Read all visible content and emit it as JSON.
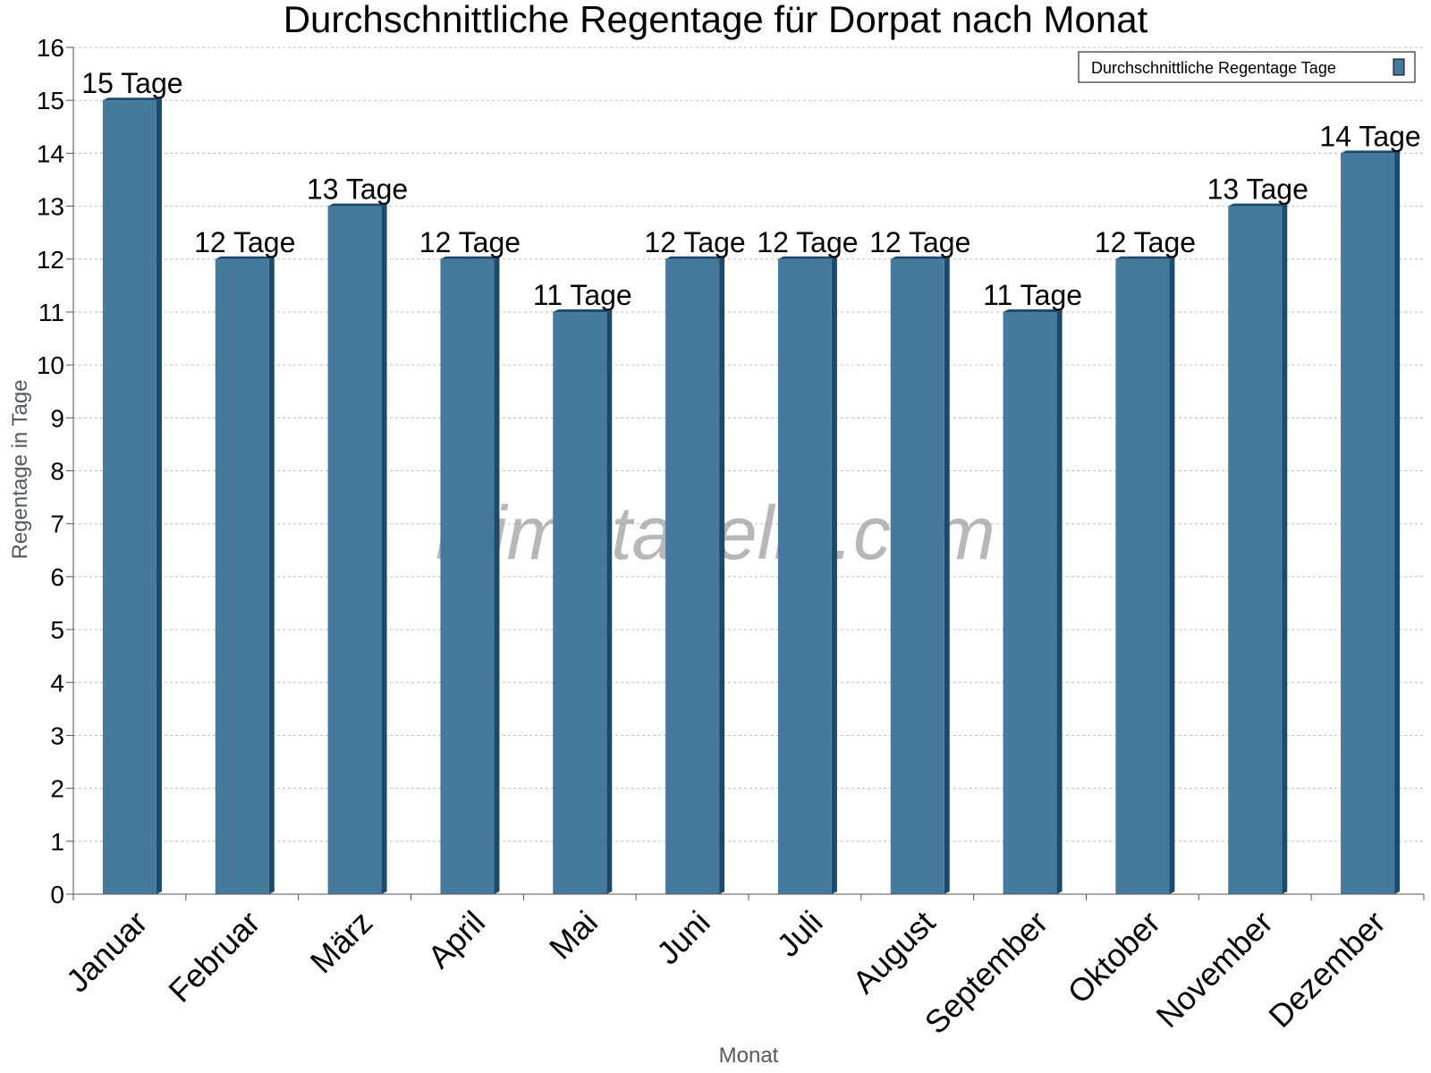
{
  "chart_data": {
    "type": "bar",
    "title": "Durchschnittliche Regentage für Dorpat nach Monat",
    "xlabel": "Monat",
    "ylabel": "Regentage in Tage",
    "categories": [
      "Januar",
      "Februar",
      "März",
      "April",
      "Mai",
      "Juni",
      "Juli",
      "August",
      "September",
      "Oktober",
      "November",
      "Dezember"
    ],
    "series": [
      {
        "name": "Durchschnittliche Regentage Tage",
        "values": [
          15,
          12,
          13,
          12,
          11,
          12,
          12,
          12,
          11,
          12,
          13,
          14
        ],
        "data_labels": [
          "15 Tage",
          "12 Tage",
          "13 Tage",
          "12 Tage",
          "11 Tage",
          "12 Tage",
          "12 Tage",
          "12 Tage",
          "11 Tage",
          "12 Tage",
          "13 Tage",
          "14 Tage"
        ],
        "color": "#467a9c",
        "shade_color": "#1c4a6c"
      }
    ],
    "ylim": [
      0,
      16
    ],
    "yticks": [
      0,
      1,
      2,
      3,
      4,
      5,
      6,
      7,
      8,
      9,
      10,
      11,
      12,
      13,
      14,
      15,
      16
    ],
    "grid": true,
    "legend_position": "top-right"
  },
  "watermark": "klimatabelle.com"
}
